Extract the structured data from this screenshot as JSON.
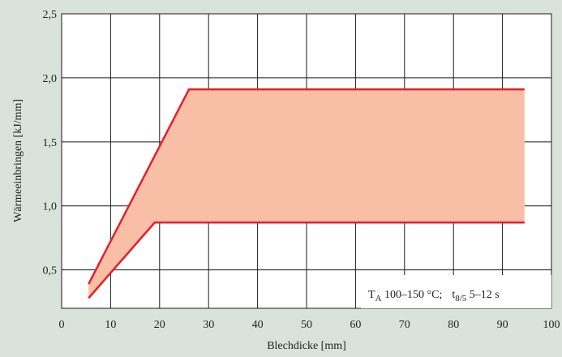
{
  "chart_data": {
    "type": "area",
    "xlabel": "Blechdicke [mm]",
    "ylabel": "Wärmeeinbringen [kJ/mm]",
    "xlim": [
      0,
      100
    ],
    "ylim": [
      0.2,
      2.5
    ],
    "x_ticks": [
      0,
      10,
      20,
      30,
      40,
      50,
      60,
      70,
      80,
      90,
      100
    ],
    "x_tick_labels": [
      "0",
      "10",
      "20",
      "30",
      "40",
      "50",
      "60",
      "70",
      "80",
      "90",
      "100"
    ],
    "y_ticks": [
      0.5,
      1.0,
      1.5,
      2.0,
      2.5
    ],
    "y_tick_labels": [
      "0,5",
      "1,0",
      "1,5",
      "2,0",
      "2,5"
    ],
    "grid": true,
    "series": [
      {
        "x": [
          5.5,
          26,
          94.5
        ],
        "y": [
          0.39,
          1.91,
          1.91
        ]
      },
      {
        "x": [
          5.5,
          19,
          94.5
        ],
        "y": [
          0.28,
          0.87,
          0.87
        ]
      }
    ],
    "fill_color": "#f9bea6",
    "line_color": "#e3202c",
    "annotation": {
      "T_symbol": "T",
      "T_subscript": "A",
      "T_range": " 100–150 °C;",
      "t_symbol": "t",
      "t_subscript": "8/5",
      "t_range": " 5–12 s"
    }
  }
}
